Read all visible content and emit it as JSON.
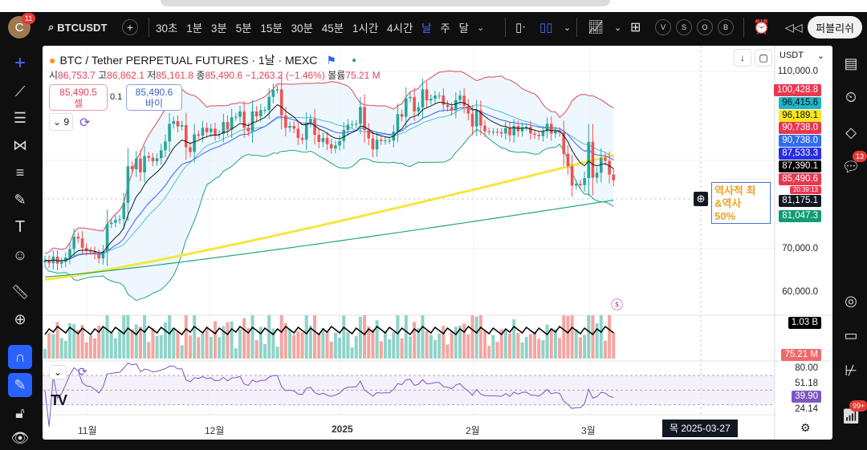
{
  "topbar": {
    "avatar_letter": "C",
    "avatar_badge": "11",
    "symbol": "BTCUSDT",
    "timeframes": [
      "30초",
      "1분",
      "3분",
      "5분",
      "15분",
      "30분",
      "45분",
      "1시간",
      "4시간",
      "날",
      "주",
      "달"
    ],
    "active_timeframe": "날",
    "circle_buttons": [
      "V",
      "S",
      "O",
      "B"
    ],
    "publish_label": "퍼블리쉬"
  },
  "legend": {
    "title": "BTC / Tether PERPETUAL FUTURES · 1날 · MEXC",
    "open_label": "시",
    "open": "86,753.7",
    "high_label": "고",
    "high": "86,862.1",
    "low_label": "저",
    "low": "85,161.8",
    "close_label": "종",
    "close": "85,490.6",
    "change": "−1,263.2 (−1.46%)",
    "volume_label": "볼륨",
    "volume": "75.21 M",
    "sell_price": "85,490.5",
    "sell_label": "셀",
    "spread": "0.1",
    "buy_price": "85,490.6",
    "buy_label": "바이",
    "indicator_count": "9"
  },
  "price_axis": {
    "currency": "USDT",
    "ticks": [
      "110,000.0",
      "70,000.0",
      "60,000.0"
    ],
    "labels": [
      {
        "text": "100,428.8",
        "color": "#e8384f"
      },
      {
        "text": "96,415.6",
        "color": "#1fb5c9",
        "dark": true
      },
      {
        "text": "96,189.1",
        "color": "#f7e51f",
        "dark": true
      },
      {
        "text": "90,738.0",
        "color": "#e8384f"
      },
      {
        "text": "90,738.0",
        "color": "#2f6cf0"
      },
      {
        "text": "87,533.3",
        "color": "#2a2ee0"
      },
      {
        "text": "87,390.1",
        "color": "#000000"
      },
      {
        "text": "85,490.6",
        "color": "#e8384f"
      },
      {
        "text": "81,175.1",
        "color": "#131722"
      },
      {
        "text": "81,047.3",
        "color": "#129a74"
      }
    ],
    "countdown": "20:39:13",
    "volume_ma": "1.03 B",
    "volume": "75.21 M",
    "rsi_ticks": [
      "80.00",
      "51.18",
      "24.14"
    ],
    "rsi_value": "39.90"
  },
  "note_box": {
    "line1": "역사적 최",
    "line2": "&역사",
    "line3": "50%"
  },
  "time_axis": {
    "labels": [
      "11월",
      "12월",
      "2025",
      "2월",
      "3월"
    ],
    "cursor_date": "목 2025-03-27"
  },
  "right_sidebar": {
    "chat_badge": "13",
    "notif_badge": "99+"
  },
  "colors": {
    "up": "#26a69a",
    "down": "#ef5350",
    "bb": "#e0455a",
    "ema": "#1a1a1a",
    "ma_blue": "#3d5afe",
    "ma_yellow": "#f5e642",
    "ma_green": "#22a57a",
    "rsi": "#7e57c2"
  },
  "chart_data": {
    "type": "candlestick",
    "start_date": "2024-10-22",
    "interval": "1D",
    "unit": "USDT (thousands)",
    "ylim": [
      55,
      112
    ],
    "closes": [
      67.4,
      66.7,
      68.2,
      66.6,
      67.0,
      68.0,
      69.9,
      72.7,
      72.3,
      70.2,
      69.5,
      69.4,
      68.7,
      67.8,
      69.4,
      75.6,
      75.9,
      76.5,
      76.7,
      80.4,
      88.7,
      88.0,
      90.4,
      87.3,
      91.0,
      90.6,
      89.8,
      90.5,
      92.3,
      94.3,
      98.3,
      98.9,
      97.7,
      98.0,
      93.0,
      91.9,
      95.9,
      95.6,
      97.4,
      96.4,
      97.2,
      95.8,
      96.0,
      98.7,
      97.0,
      99.8,
      99.9,
      101.1,
      97.4,
      96.6,
      101.1,
      100.0,
      101.4,
      101.4,
      104.4,
      106.0,
      106.1,
      100.2,
      97.4,
      97.8,
      97.2,
      95.1,
      94.7,
      98.6,
      99.4,
      95.8,
      94.2,
      95.1,
      93.7,
      92.7,
      93.4,
      94.4,
      96.9,
      98.1,
      98.2,
      98.3,
      102.1,
      96.9,
      95.0,
      92.5,
      94.7,
      94.4,
      94.5,
      94.5,
      96.5,
      100.5,
      99.9,
      104.1,
      104.4,
      101.1,
      102.0,
      106.1,
      103.6,
      104.0,
      104.7,
      104.7,
      102.6,
      102.1,
      101.3,
      103.7,
      104.7,
      102.4,
      100.6,
      97.7,
      101.4,
      97.9,
      96.6,
      96.5,
      96.5,
      96.4,
      96.1,
      97.4,
      95.7,
      97.8,
      96.6,
      97.5,
      97.6,
      96.1,
      95.8,
      95.5,
      96.6,
      98.3,
      96.1,
      96.6,
      96.3,
      91.5,
      88.7,
      84.3,
      84.7,
      84.4,
      86.0,
      94.2,
      86.1,
      87.2,
      90.6,
      89.9,
      86.8,
      85.5
    ],
    "slow_ma_yellow": {
      "start": 63.0,
      "end": 91.2
    },
    "slow_ma_green": {
      "start": 63.6,
      "end": 81.0
    }
  }
}
